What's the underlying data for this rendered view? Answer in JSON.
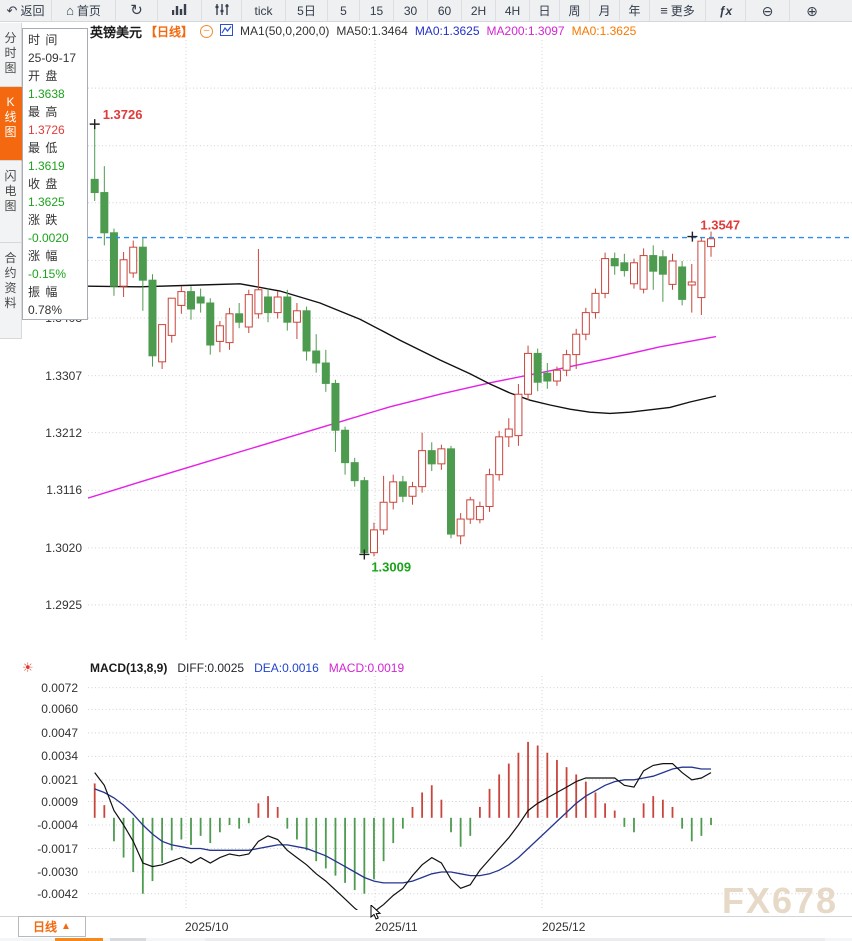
{
  "toolbar": {
    "items": [
      {
        "label": "返回",
        "icon": "back"
      },
      {
        "label": "首页",
        "icon": "home"
      },
      {
        "label": "",
        "icon": "refresh"
      },
      {
        "label": "",
        "icon": "bar-chart"
      },
      {
        "label": "",
        "icon": "sliders"
      },
      {
        "label": "tick"
      },
      {
        "label": "5日"
      },
      {
        "label": "5"
      },
      {
        "label": "15"
      },
      {
        "label": "30"
      },
      {
        "label": "60"
      },
      {
        "label": "2H"
      },
      {
        "label": "4H"
      },
      {
        "label": "日"
      },
      {
        "label": "周"
      },
      {
        "label": "月"
      },
      {
        "label": "年"
      },
      {
        "label": "更多",
        "icon": "menu"
      },
      {
        "label": "ƒx",
        "icon": "fx"
      },
      {
        "label": "",
        "icon": "zoom-out"
      },
      {
        "label": "",
        "icon": "zoom-in"
      }
    ]
  },
  "sidebar": {
    "tabs": [
      {
        "label": "分时图",
        "active": false
      },
      {
        "label": "K线图",
        "active": true
      },
      {
        "label": "闪电图",
        "active": false
      },
      {
        "label": "合约资料",
        "active": false
      }
    ]
  },
  "info_panel": {
    "rows": [
      {
        "label": "时 间",
        "value": "25-09-17",
        "color": "black"
      },
      {
        "label": "开 盘",
        "value": "1.3638",
        "color": "green"
      },
      {
        "label": "最 高",
        "value": "1.3726",
        "color": "red"
      },
      {
        "label": "最 低",
        "value": "1.3619",
        "color": "green"
      },
      {
        "label": "收 盘",
        "value": "1.3625",
        "color": "green"
      },
      {
        "label": "涨 跌",
        "value": "-0.0020",
        "color": "green"
      },
      {
        "label": "涨 幅",
        "value": "-0.15%",
        "color": "green"
      },
      {
        "label": "振 幅",
        "value": "0.78%",
        "color": "black"
      }
    ]
  },
  "kline_header": {
    "symbol": "英镑美元",
    "period": "【日线】",
    "collapse": "–",
    "ma_settings": "MA1(50,0,200,0)",
    "ma50": "MA50:1.3464",
    "ma0_blue": "MA0:1.3625",
    "ma200": "MA200:1.3097",
    "ma0_orange": "MA0:1.3625"
  },
  "macd_header": {
    "title": "MACD(13,8,9)",
    "diff": "DIFF:0.0025",
    "dea": "DEA:0.0016",
    "macd": "MACD:0.0019"
  },
  "bottom": {
    "period_label": "日线",
    "period_arrow": "▲"
  },
  "watermark": "FX678",
  "colors": {
    "up": "#c9453c",
    "down": "#4d9b4f",
    "ma50": "#111111",
    "ma200": "#e520e5",
    "dashed": "#2e8ded",
    "grid": "#d2d2d2",
    "diff": "#111111",
    "dea": "#25358f",
    "accent_orange": "#f4690f",
    "green_text": "#1ca31c",
    "red_text": "#e03a3a"
  },
  "chart_data": [
    {
      "type": "candlestick",
      "title": "英镑美元 日线 (GBP/USD daily)",
      "y_ticks": [
        1.3403,
        1.3307,
        1.3212,
        1.3116,
        1.302,
        1.2925
      ],
      "y_gridlines_unlabeled": [
        1.3786,
        1.369,
        1.3595,
        1.3499
      ],
      "x_tick_labels": [
        "2025/10",
        "2025/11",
        "2025/12"
      ],
      "dashed_line_price": 1.3537,
      "markers": {
        "high": {
          "label": "1.3726",
          "price": 1.3726,
          "index": 0
        },
        "low": {
          "label": "1.3009",
          "price": 1.3009,
          "index": 28
        },
        "last": {
          "label": "1.3547",
          "price": 1.3547,
          "index": 63
        }
      },
      "candles": [
        [
          1.3634,
          1.3726,
          1.3598,
          1.3612
        ],
        [
          1.3612,
          1.3656,
          1.3524,
          1.3545
        ],
        [
          1.3545,
          1.3552,
          1.344,
          1.3456
        ],
        [
          1.3456,
          1.3513,
          1.3438,
          1.35
        ],
        [
          1.3478,
          1.3532,
          1.347,
          1.3521
        ],
        [
          1.3521,
          1.3536,
          1.3415,
          1.3466
        ],
        [
          1.3466,
          1.3476,
          1.3322,
          1.334
        ],
        [
          1.333,
          1.3356,
          1.3318,
          1.3392
        ],
        [
          1.3374,
          1.341,
          1.3362,
          1.3436
        ],
        [
          1.3424,
          1.3456,
          1.341,
          1.3447
        ],
        [
          1.3447,
          1.3456,
          1.34,
          1.3418
        ],
        [
          1.3438,
          1.3452,
          1.3412,
          1.3428
        ],
        [
          1.3428,
          1.3436,
          1.3342,
          1.3358
        ],
        [
          1.3364,
          1.3398,
          1.3346,
          1.339
        ],
        [
          1.3362,
          1.342,
          1.335,
          1.341
        ],
        [
          1.341,
          1.3428,
          1.3386,
          1.3396
        ],
        [
          1.3388,
          1.345,
          1.3378,
          1.3442
        ],
        [
          1.341,
          1.3518,
          1.3402,
          1.345
        ],
        [
          1.3438,
          1.3452,
          1.3396,
          1.3412
        ],
        [
          1.3412,
          1.3448,
          1.3402,
          1.3438
        ],
        [
          1.3438,
          1.345,
          1.3382,
          1.3396
        ],
        [
          1.3396,
          1.3428,
          1.3368,
          1.3415
        ],
        [
          1.3415,
          1.3422,
          1.3332,
          1.3348
        ],
        [
          1.3348,
          1.3376,
          1.3312,
          1.3328
        ],
        [
          1.3328,
          1.335,
          1.328,
          1.3294
        ],
        [
          1.3294,
          1.33,
          1.318,
          1.3216
        ],
        [
          1.3216,
          1.3222,
          1.3142,
          1.3162
        ],
        [
          1.3162,
          1.317,
          1.3122,
          1.3132
        ],
        [
          1.3132,
          1.3138,
          1.3009,
          1.3012
        ],
        [
          1.3012,
          1.3062,
          1.3006,
          1.305
        ],
        [
          1.305,
          1.314,
          1.3042,
          1.3096
        ],
        [
          1.3096,
          1.3142,
          1.3084,
          1.313
        ],
        [
          1.313,
          1.314,
          1.3096,
          1.3106
        ],
        [
          1.3106,
          1.313,
          1.3092,
          1.3122
        ],
        [
          1.3122,
          1.3212,
          1.3112,
          1.3182
        ],
        [
          1.3182,
          1.3196,
          1.3148,
          1.316
        ],
        [
          1.316,
          1.3192,
          1.315,
          1.3185
        ],
        [
          1.3185,
          1.319,
          1.3036,
          1.3043
        ],
        [
          1.304,
          1.3078,
          1.3026,
          1.3068
        ],
        [
          1.3068,
          1.3105,
          1.306,
          1.31
        ],
        [
          1.3067,
          1.3097,
          1.3061,
          1.3089
        ],
        [
          1.3089,
          1.3152,
          1.308,
          1.3142
        ],
        [
          1.3142,
          1.3215,
          1.3132,
          1.3205
        ],
        [
          1.3205,
          1.3236,
          1.3188,
          1.3218
        ],
        [
          1.3207,
          1.3293,
          1.319,
          1.3276
        ],
        [
          1.3276,
          1.3357,
          1.3266,
          1.3344
        ],
        [
          1.3344,
          1.3352,
          1.3281,
          1.3296
        ],
        [
          1.3311,
          1.3328,
          1.3285,
          1.3298
        ],
        [
          1.3298,
          1.3322,
          1.329,
          1.3316
        ],
        [
          1.3316,
          1.335,
          1.3306,
          1.3342
        ],
        [
          1.3342,
          1.3385,
          1.3318,
          1.3376
        ],
        [
          1.3376,
          1.342,
          1.3366,
          1.3412
        ],
        [
          1.3412,
          1.3452,
          1.3402,
          1.3444
        ],
        [
          1.3444,
          1.3512,
          1.3436,
          1.3502
        ],
        [
          1.3502,
          1.3512,
          1.3475,
          1.349
        ],
        [
          1.3495,
          1.351,
          1.3472,
          1.3482
        ],
        [
          1.346,
          1.3502,
          1.3452,
          1.3495
        ],
        [
          1.3451,
          1.3519,
          1.3444,
          1.3507
        ],
        [
          1.3507,
          1.3524,
          1.345,
          1.3481
        ],
        [
          1.3505,
          1.3516,
          1.343,
          1.3476
        ],
        [
          1.3459,
          1.351,
          1.345,
          1.3498
        ],
        [
          1.3488,
          1.3498,
          1.3424,
          1.3434
        ],
        [
          1.3458,
          1.3493,
          1.3412,
          1.3463
        ],
        [
          1.3437,
          1.3538,
          1.3408,
          1.3531
        ],
        [
          1.3522,
          1.3547,
          1.3505,
          1.3535
        ]
      ],
      "ma50_points": [
        [
          0,
          1.3456
        ],
        [
          52,
          1.3455
        ],
        [
          112,
          1.3458
        ],
        [
          152,
          1.346
        ],
        [
          192,
          1.3448
        ],
        [
          232,
          1.3428
        ],
        [
          272,
          1.3401
        ],
        [
          312,
          1.3366
        ],
        [
          352,
          1.3333
        ],
        [
          382,
          1.331
        ],
        [
          402,
          1.3293
        ],
        [
          422,
          1.3278
        ],
        [
          442,
          1.3266
        ],
        [
          462,
          1.3258
        ],
        [
          482,
          1.3251
        ],
        [
          502,
          1.3246
        ],
        [
          522,
          1.3244
        ],
        [
          542,
          1.3246
        ],
        [
          562,
          1.325
        ],
        [
          582,
          1.3254
        ],
        [
          602,
          1.3263
        ],
        [
          628,
          1.3273
        ]
      ],
      "ma200_points": [
        [
          0,
          1.3103
        ],
        [
          62,
          1.3135
        ],
        [
          122,
          1.3165
        ],
        [
          182,
          1.3195
        ],
        [
          242,
          1.3225
        ],
        [
          302,
          1.3255
        ],
        [
          352,
          1.3276
        ],
        [
          402,
          1.3295
        ],
        [
          462,
          1.3315
        ],
        [
          522,
          1.3336
        ],
        [
          572,
          1.3355
        ],
        [
          628,
          1.3372
        ]
      ]
    },
    {
      "type": "bar",
      "title": "MACD(13,8,9)",
      "y_ticks": [
        0.0072,
        0.006,
        0.0047,
        0.0034,
        0.0021,
        0.0009,
        -0.0004,
        -0.0017,
        -0.003,
        -0.0042
      ],
      "hist_x1e4": [
        19,
        7,
        -13,
        -22,
        -30,
        -42,
        -35,
        -25,
        -18,
        -12,
        -15,
        -10,
        -14,
        -8,
        -4,
        -6,
        -3,
        8,
        12,
        6,
        -6,
        -12,
        -18,
        -24,
        -28,
        -32,
        -36,
        -40,
        -42,
        -34,
        -24,
        -14,
        -6,
        6,
        14,
        18,
        10,
        -8,
        -16,
        -10,
        6,
        16,
        24,
        30,
        36,
        42,
        40,
        36,
        32,
        28,
        24,
        20,
        14,
        8,
        4,
        -5,
        -8,
        8,
        12,
        10,
        6,
        -6,
        -13,
        -10,
        -4
      ],
      "diff_x1e4": [
        25,
        18,
        4,
        -4,
        -13,
        -25,
        -27,
        -26,
        -24,
        -22,
        -25,
        -22,
        -25,
        -22,
        -20,
        -21,
        -20,
        -13,
        -10,
        -12,
        -18,
        -22,
        -26,
        -31,
        -35,
        -40,
        -45,
        -50,
        -54,
        -52,
        -48,
        -43,
        -39,
        -32,
        -26,
        -22,
        -25,
        -34,
        -39,
        -37,
        -29,
        -23,
        -17,
        -11,
        -4,
        4,
        8,
        11,
        14,
        17,
        20,
        22,
        22,
        22,
        22,
        18,
        17,
        26,
        29,
        30,
        30,
        25,
        21,
        22,
        25
      ],
      "dea_x1e4": [
        16,
        14,
        11,
        7,
        2,
        -4,
        -9,
        -13,
        -15,
        -16,
        -17,
        -17,
        -18,
        -18,
        -18,
        -18,
        -18,
        -17,
        -16,
        -15,
        -15,
        -16,
        -17,
        -19,
        -21,
        -24,
        -27,
        -30,
        -33,
        -35,
        -36,
        -36,
        -36,
        -35,
        -33,
        -31,
        -30,
        -30,
        -31,
        -32,
        -32,
        -31,
        -29,
        -26,
        -22,
        -17,
        -12,
        -7,
        -2,
        3,
        8,
        12,
        15,
        18,
        20,
        21,
        21,
        22,
        23,
        25,
        27,
        28,
        28,
        27,
        27
      ]
    }
  ]
}
